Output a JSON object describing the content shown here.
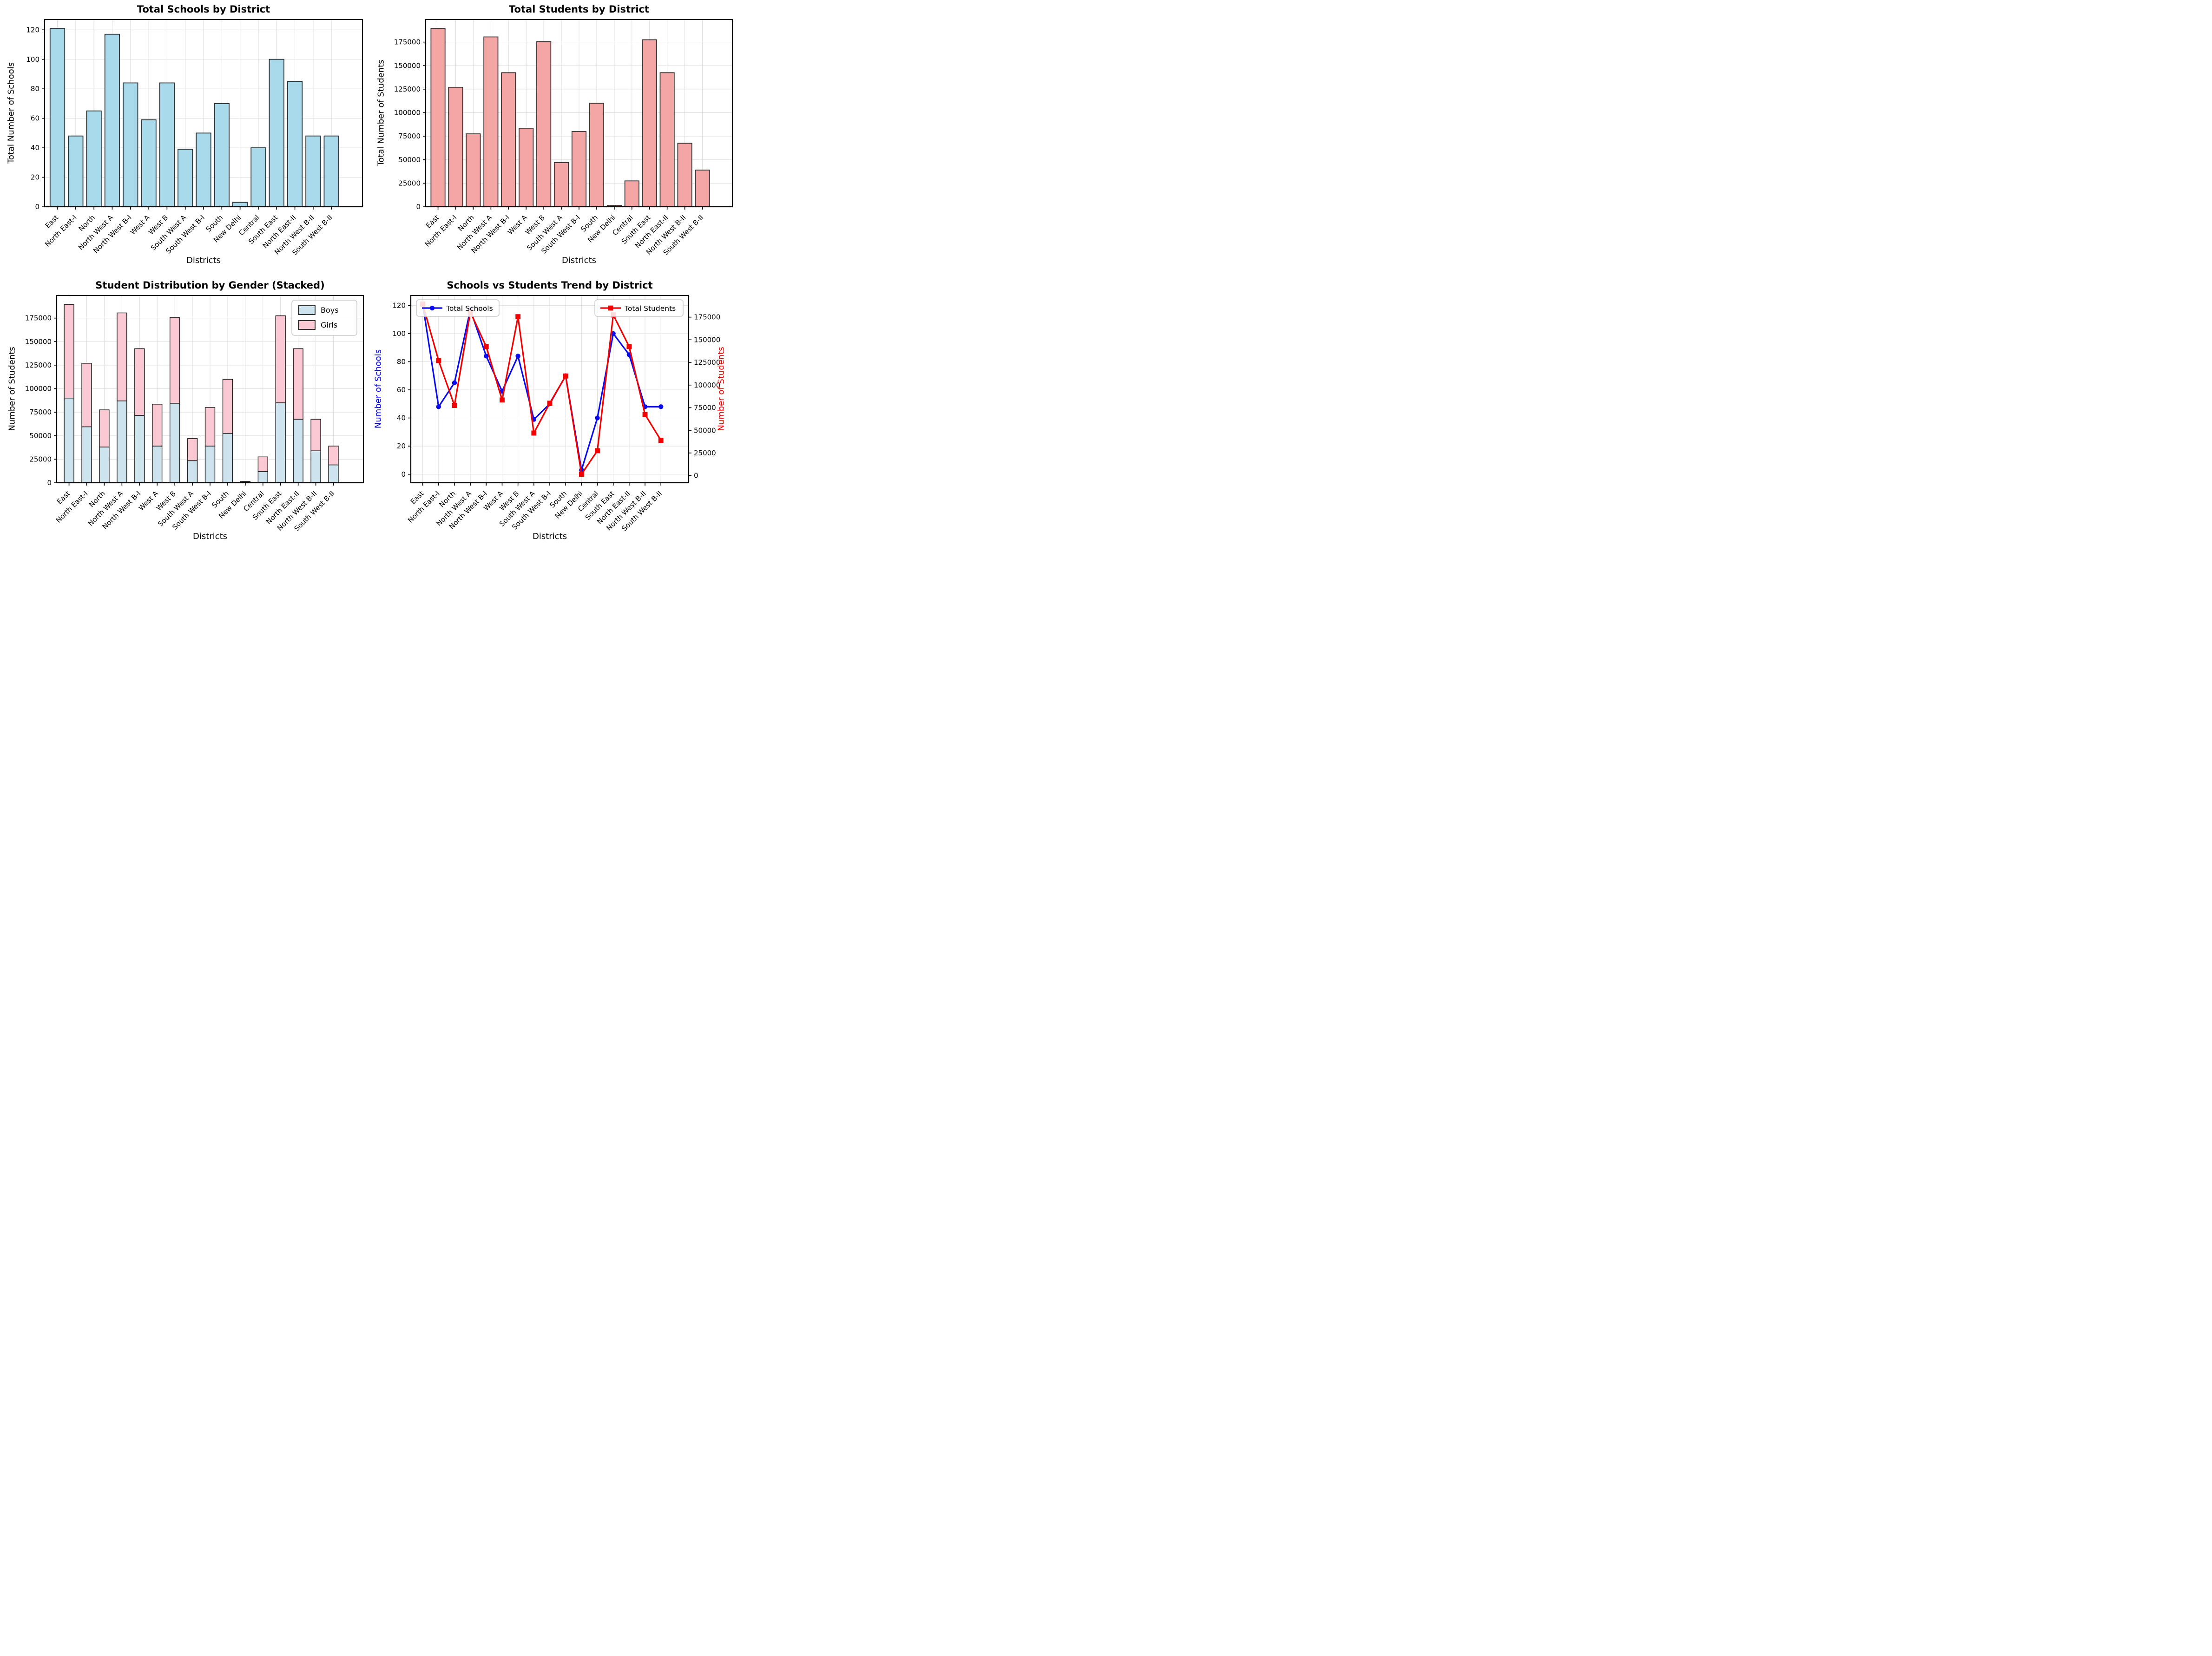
{
  "districts": [
    "East",
    "North East-I",
    "North",
    "North West A",
    "North West B-I",
    "West A",
    "West B",
    "South West A",
    "South West B-I",
    "South",
    "New Delhi",
    "Central",
    "South East",
    "North East-II",
    "North West B-II",
    "South West B-II"
  ],
  "chart_data": [
    {
      "id": "schools-bar",
      "type": "bar",
      "title": "Total Schools by District",
      "xlabel": "Districts",
      "ylabel": "Total Number of Schools",
      "categories": [
        "East",
        "North East-I",
        "North",
        "North West A",
        "North West B-I",
        "West A",
        "West B",
        "South West A",
        "South West B-I",
        "South",
        "New Delhi",
        "Central",
        "South East",
        "North East-II",
        "North West B-II",
        "South West B-II"
      ],
      "values": [
        121,
        48,
        65,
        117,
        84,
        59,
        84,
        39,
        50,
        70,
        3,
        40,
        100,
        85,
        48,
        48
      ],
      "bar_color": "#a9daeb",
      "bar_edge_color": "#2e3436",
      "ylim": [
        0,
        127
      ],
      "yticks": [
        0,
        20,
        40,
        60,
        80,
        100,
        120
      ],
      "grid": true
    },
    {
      "id": "students-bar",
      "type": "bar",
      "title": "Total Students by District",
      "xlabel": "Districts",
      "ylabel": "Total Number of Students",
      "categories": [
        "East",
        "North East-I",
        "North",
        "North West A",
        "North West B-I",
        "West A",
        "West B",
        "South West A",
        "South West B-I",
        "South",
        "New Delhi",
        "Central",
        "South East",
        "North East-II",
        "North West B-II",
        "South West B-II"
      ],
      "values": [
        189500,
        127000,
        77500,
        180500,
        142500,
        83500,
        175500,
        47000,
        80000,
        110000,
        1500,
        27500,
        177500,
        142500,
        67500,
        39000
      ],
      "bar_color": "#f4a6a5",
      "bar_edge_color": "#3a3436",
      "ylim": [
        0,
        199000
      ],
      "yticks": [
        0,
        25000,
        50000,
        75000,
        100000,
        125000,
        150000,
        175000
      ],
      "grid": true
    },
    {
      "id": "gender-stacked",
      "type": "stacked_bar",
      "title": "Student Distribution by Gender (Stacked)",
      "xlabel": "Districts",
      "ylabel": "Number of Students",
      "categories": [
        "East",
        "North East-I",
        "North",
        "North West A",
        "North West B-I",
        "West A",
        "West B",
        "South West A",
        "South West B-I",
        "South",
        "New Delhi",
        "Central",
        "South East",
        "North East-II",
        "North West B-II",
        "South West B-II"
      ],
      "series": [
        {
          "name": "Boys",
          "color": "#cde3ee",
          "values": [
            90000,
            59500,
            38000,
            87000,
            71500,
            39000,
            84500,
            23500,
            39000,
            52500,
            800,
            12000,
            85000,
            67500,
            34000,
            19000
          ]
        },
        {
          "name": "Girls",
          "color": "#fbc9d4",
          "values": [
            99500,
            67500,
            39500,
            93500,
            71000,
            44500,
            91000,
            23500,
            41000,
            57500,
            700,
            15500,
            92500,
            75000,
            33500,
            20000
          ]
        }
      ],
      "legend": {
        "position": "top-right",
        "labels": [
          "Boys",
          "Girls"
        ]
      },
      "bar_edge_color": "#222222",
      "ylim": [
        0,
        199000
      ],
      "yticks": [
        0,
        25000,
        50000,
        75000,
        100000,
        125000,
        150000,
        175000
      ],
      "grid": true
    },
    {
      "id": "trend-dual-line",
      "type": "dual_line",
      "title": "Schools vs Students Trend by District",
      "xlabel": "Districts",
      "ylabel_left": "Number of Schools",
      "ylabel_right": "Number of Students",
      "axis_label_colors": {
        "left": "#0000f0",
        "right": "#f00000"
      },
      "categories": [
        "East",
        "North East-I",
        "North",
        "North West A",
        "North West B-I",
        "West A",
        "West B",
        "South West A",
        "South West B-I",
        "South",
        "New Delhi",
        "Central",
        "South East",
        "North East-II",
        "North West B-II",
        "South West B-II"
      ],
      "series": [
        {
          "name": "Total Schools",
          "axis": "left",
          "color": "#0b0bf0",
          "marker": "circle",
          "values": [
            121,
            48,
            65,
            117,
            84,
            59,
            84,
            39,
            50,
            70,
            3,
            40,
            100,
            85,
            48,
            48
          ]
        },
        {
          "name": "Total Students",
          "axis": "right",
          "color": "#f50000",
          "marker": "square",
          "values": [
            189500,
            127000,
            77500,
            180500,
            142500,
            83500,
            175500,
            47000,
            80000,
            110000,
            1500,
            27500,
            177500,
            142500,
            67500,
            39000
          ]
        }
      ],
      "legends": [
        {
          "label": "Total Schools",
          "position": "top-left"
        },
        {
          "label": "Total Students",
          "position": "top-right"
        }
      ],
      "ylim_left": [
        -6.05,
        127.05
      ],
      "ylim_right": [
        -7900,
        198900
      ],
      "yticks_left": [
        0,
        20,
        40,
        60,
        80,
        100,
        120
      ],
      "yticks_right": [
        0,
        25000,
        50000,
        75000,
        100000,
        125000,
        150000,
        175000
      ],
      "grid": true
    }
  ]
}
